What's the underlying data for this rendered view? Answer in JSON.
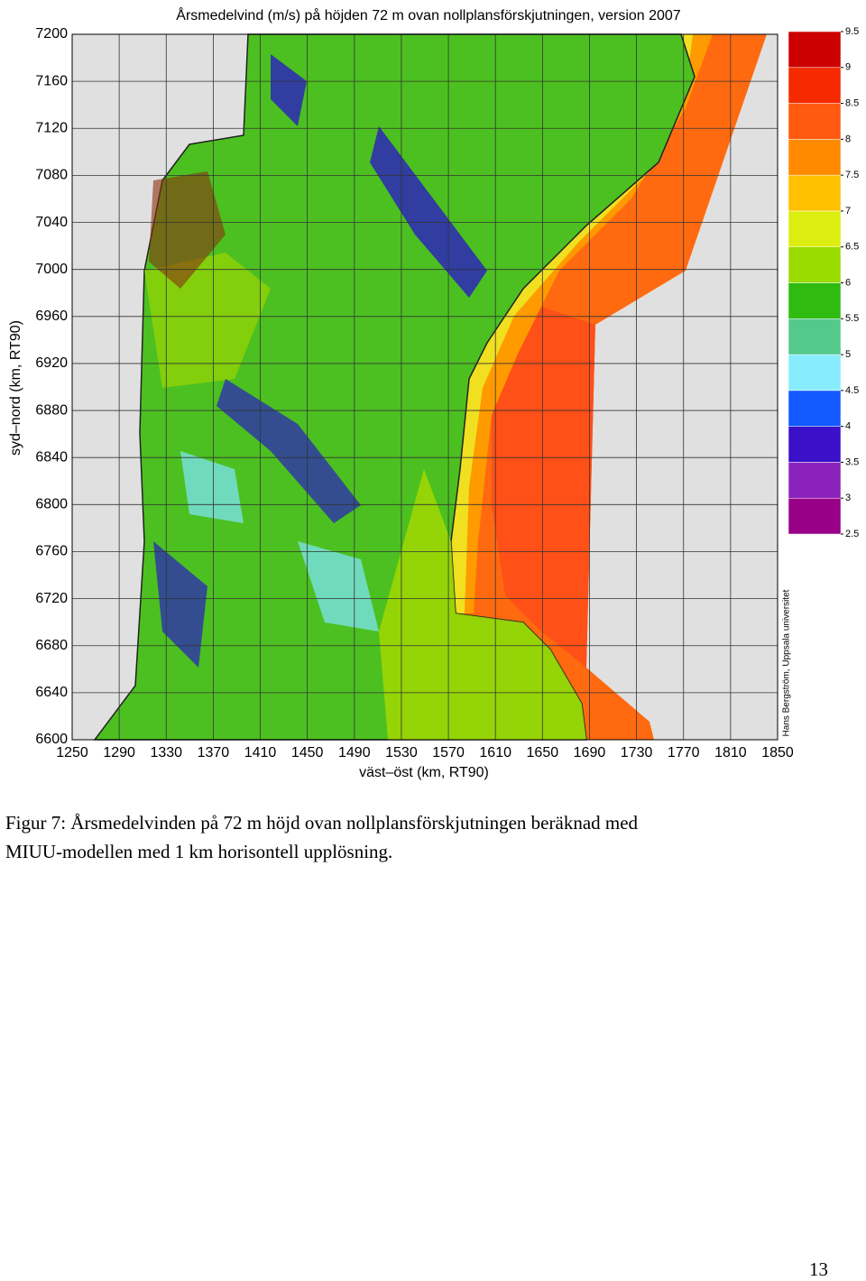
{
  "figure": {
    "title": "Årsmedelvind (m/s) på höjden 72 m ovan nollplansförskjutningen, version 2007",
    "xlabel": "väst–öst (km, RT90)",
    "ylabel": "syd–nord (km, RT90)",
    "credit": "Hans Bergström, Uppsala universitet",
    "xlim": [
      1250,
      1850
    ],
    "ylim": [
      6600,
      7200
    ],
    "xticks": [
      1250,
      1290,
      1330,
      1370,
      1410,
      1450,
      1490,
      1530,
      1570,
      1610,
      1650,
      1690,
      1730,
      1770,
      1810,
      1850
    ],
    "yticks": [
      6600,
      6640,
      6680,
      6720,
      6760,
      6800,
      6840,
      6880,
      6920,
      6960,
      7000,
      7040,
      7080,
      7120,
      7160,
      7200
    ],
    "grid": true,
    "colorbar": {
      "lim": [
        2.5,
        9.5
      ],
      "ticks": [
        2.5,
        3,
        3.5,
        4,
        4.5,
        5,
        5.5,
        6,
        6.5,
        7,
        7.5,
        8,
        8.5,
        9,
        9.5
      ],
      "colors": [
        "#990088",
        "#8a22bb",
        "#3a10c8",
        "#1458ff",
        "#88ecff",
        "#55c98c",
        "#2fbb10",
        "#9bdb00",
        "#dcee10",
        "#ffc000",
        "#ff8a00",
        "#ff5a10",
        "#f52a00",
        "#cc0000"
      ]
    }
  },
  "caption": {
    "line1": "Figur 7: Årsmedelvinden på 72 m höjd ovan nollplansförskjutningen beräknad med",
    "line2": "MIUU-modellen med 1 km horisontell upplösning."
  },
  "page_number": "13"
}
